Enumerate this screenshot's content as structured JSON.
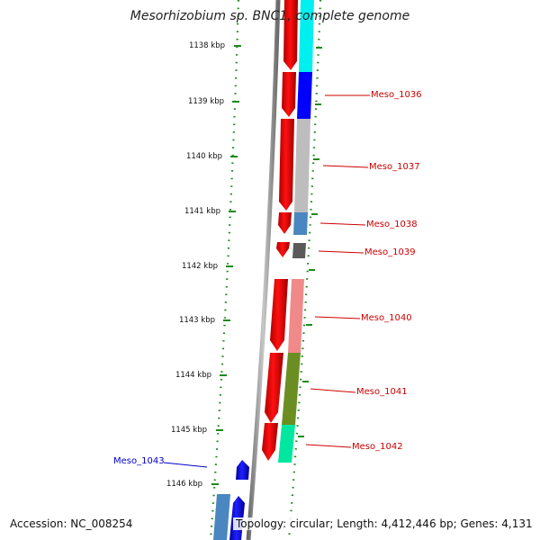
{
  "title": "Mesorhizobium sp. BNC1, complete genome",
  "footer": {
    "accession": "Accession: NC_008254",
    "summary": "Topology: circular; Length: 4,412,446 bp; Genes: 4,131"
  },
  "ruler": {
    "unit": "kbp",
    "ticks": [
      "1138 kbp",
      "1139 kbp",
      "1140 kbp",
      "1141 kbp",
      "1142 kbp",
      "1143 kbp",
      "1144 kbp",
      "1145 kbp",
      "1146 kbp"
    ]
  },
  "genes": [
    {
      "name": "Meso_1036",
      "color": "#cc0000"
    },
    {
      "name": "Meso_1037",
      "color": "#cc0000"
    },
    {
      "name": "Meso_1038",
      "color": "#cc0000"
    },
    {
      "name": "Meso_1039",
      "color": "#cc0000"
    },
    {
      "name": "Meso_1040",
      "color": "#cc0000"
    },
    {
      "name": "Meso_1041",
      "color": "#cc0000"
    },
    {
      "name": "Meso_1042",
      "color": "#cc0000"
    },
    {
      "name": "Meso_1043",
      "color": "#0000cc"
    }
  ],
  "colors": {
    "forward_cds": "#ff0000",
    "reverse_cds": "#0000ff",
    "backbone": "#888888",
    "ruler_dots": "#1f8a1f",
    "cog_cyan": "#00f0f0",
    "cog_blue": "#0000ff",
    "cog_gray": "#bdbdbd",
    "cog_steelblue": "#4a86c0",
    "cog_darkgray": "#5a5a5a",
    "cog_pink": "#f08a8a",
    "cog_olive": "#6b8e23",
    "cog_aquamarine": "#00e8a0"
  }
}
